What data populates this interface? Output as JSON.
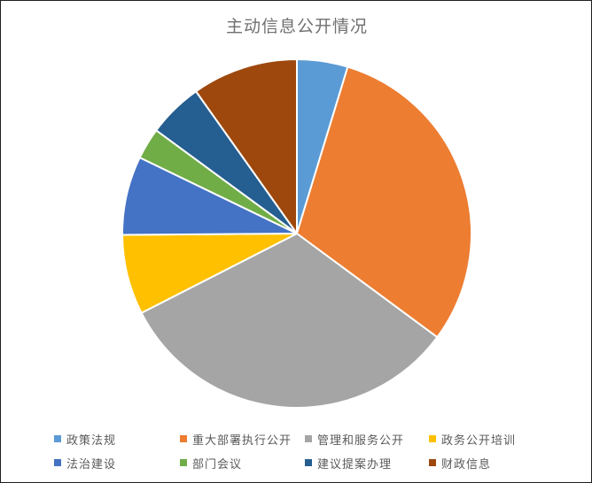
{
  "page": {
    "background": "#ffffff",
    "frame_border_color": "#1f1f1f"
  },
  "chart_data": {
    "type": "pie",
    "title": "主动信息公开情况",
    "title_color": "#707070",
    "start_angle_deg": 0,
    "direction": "clockwise",
    "data_labels": "none",
    "legend_position": "bottom",
    "legend_text_color": "#595959",
    "series": [
      {
        "name": "政策法规",
        "percent": 4.7,
        "angle_deg": 17.0,
        "color": "#5B9BD5"
      },
      {
        "name": "重大部署执行公开",
        "percent": 30.4,
        "angle_deg": 109.3,
        "color": "#ED7D31"
      },
      {
        "name": "管理和服务公开",
        "percent": 32.3,
        "angle_deg": 116.3,
        "color": "#A5A5A5"
      },
      {
        "name": "政务公开培训",
        "percent": 7.4,
        "angle_deg": 26.8,
        "color": "#FFC000"
      },
      {
        "name": "法治建设",
        "percent": 7.3,
        "angle_deg": 26.3,
        "color": "#4472C4"
      },
      {
        "name": "部门会议",
        "percent": 2.9,
        "angle_deg": 10.6,
        "color": "#70AD47"
      },
      {
        "name": "建议提案办理",
        "percent": 5.1,
        "angle_deg": 18.3,
        "color": "#255E91"
      },
      {
        "name": "财政信息",
        "percent": 9.8,
        "angle_deg": 35.4,
        "color": "#9E480E"
      }
    ]
  }
}
